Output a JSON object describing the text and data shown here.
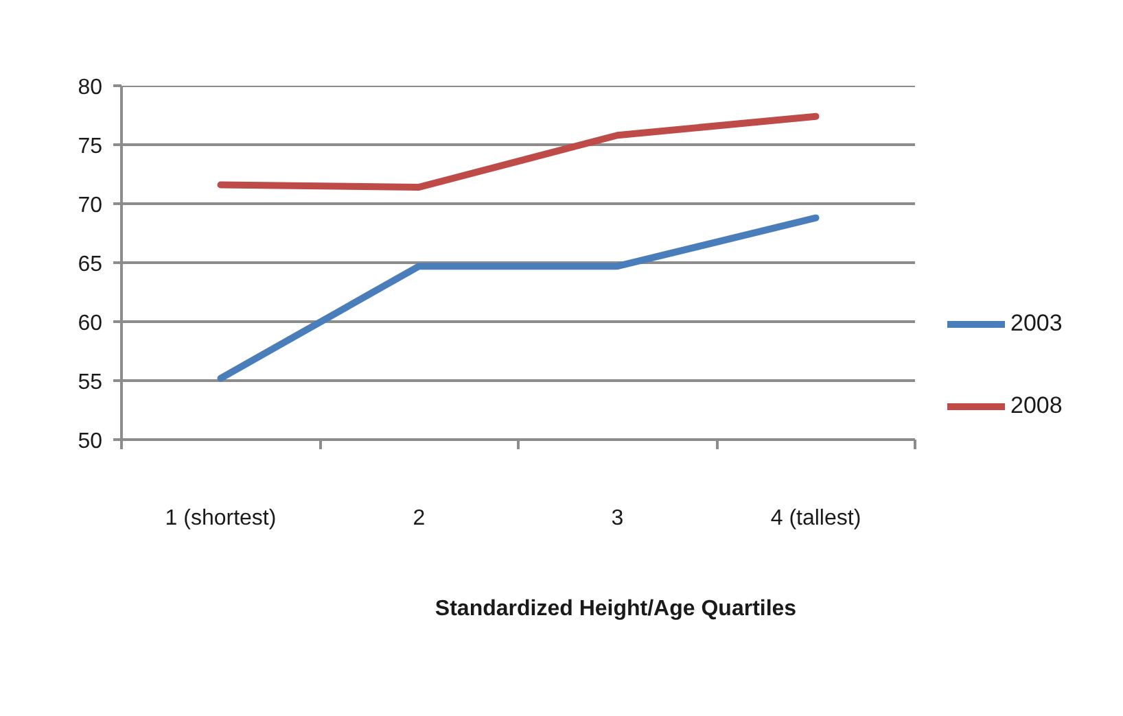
{
  "chart_data": {
    "type": "line",
    "xlabel": "Standardized Height/Age Quartiles",
    "categories": [
      "1 (shortest)",
      "2",
      "3",
      "4 (tallest)"
    ],
    "series": [
      {
        "name": "2003",
        "color": "#4a7ebb",
        "values": [
          55.2,
          64.7,
          64.7,
          68.8
        ]
      },
      {
        "name": "2008",
        "color": "#be4b48",
        "values": [
          71.6,
          71.4,
          75.8,
          77.4
        ]
      }
    ],
    "ylim": [
      50,
      80
    ],
    "yticks": [
      50,
      55,
      60,
      65,
      70,
      75,
      80
    ],
    "grid": "y",
    "legend": "right",
    "marker": "none",
    "line_style": "solid"
  }
}
